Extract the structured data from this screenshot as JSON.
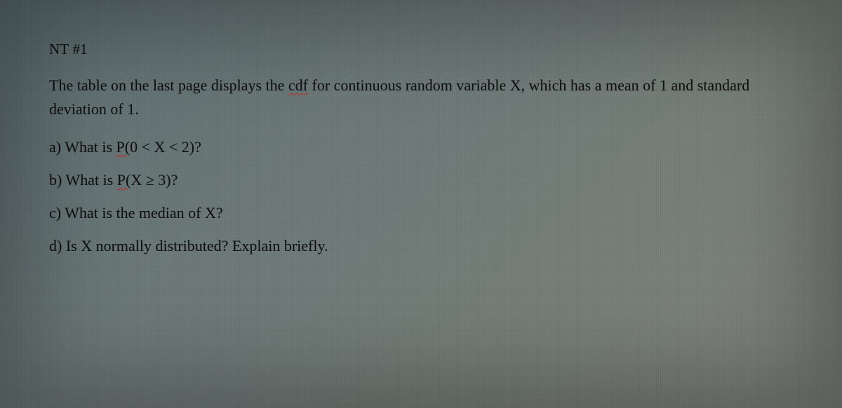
{
  "colors": {
    "text": "#111111",
    "spellcheck_underline": "#c03028",
    "bg_gradient_stops": [
      "#5a6b6e",
      "#647375",
      "#6d7a79",
      "#737e7a",
      "#7a817b",
      "#80847c"
    ]
  },
  "typography": {
    "family": "Georgia / Times-style serif",
    "heading_fontsize_pt": 16,
    "body_fontsize_pt": 17,
    "line_height": 1.55
  },
  "content": {
    "heading": "NT #1",
    "intro_pre": "The table on the last page displays the ",
    "intro_cdf": "cdf",
    "intro_post": " for continuous random variable X, which has a mean of 1 and standard deviation of 1.",
    "q_a_pre": "a) What is ",
    "q_a_u": "P(",
    "q_a_post": "0 < X < 2)?",
    "q_b_pre": "b) What is ",
    "q_b_u": "P(",
    "q_b_post": "X ≥ 3)?",
    "q_c": "c) What is the median of X?",
    "q_d": "d) Is X normally distributed? Explain briefly."
  }
}
